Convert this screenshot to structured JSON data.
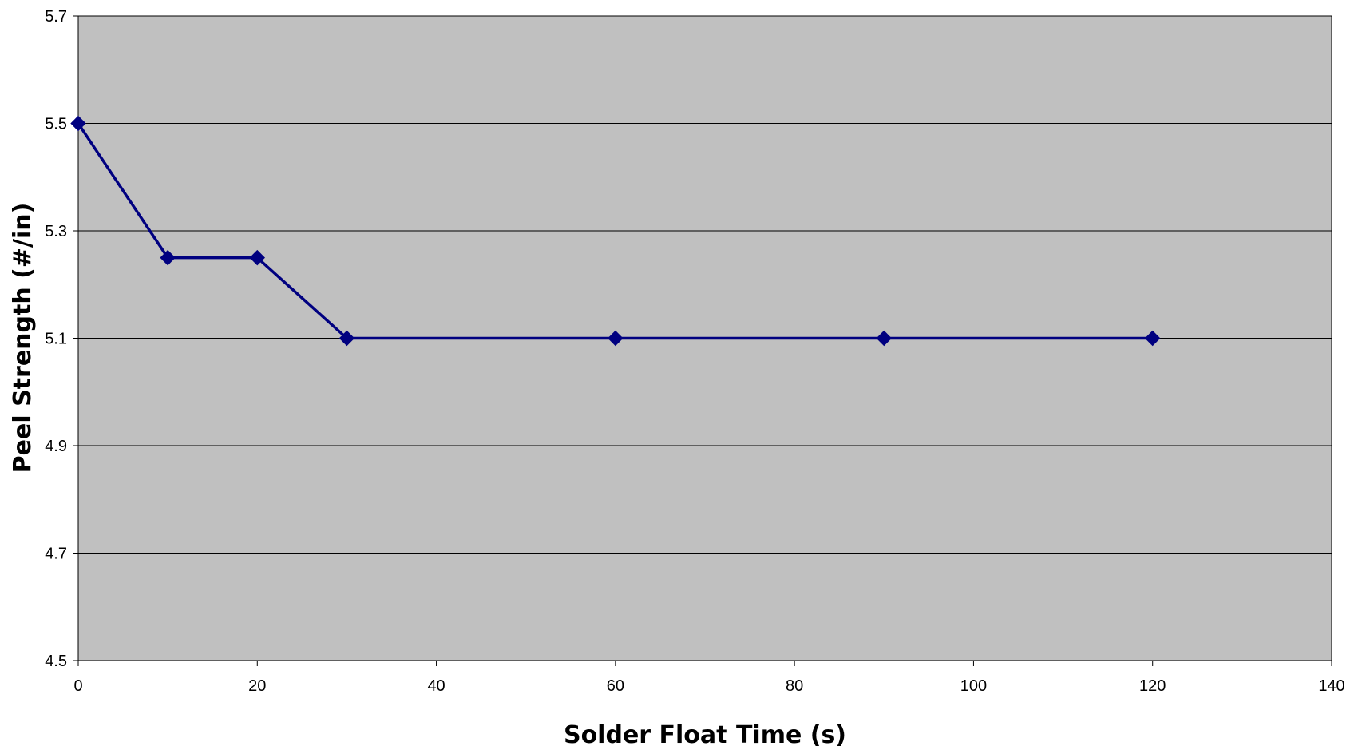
{
  "chart_data": {
    "type": "line",
    "title": "",
    "xlabel": "Solder Float Time (s)",
    "ylabel": "Peel Strength (#/in)",
    "xlim": [
      0,
      140
    ],
    "ylim": [
      4.5,
      5.7
    ],
    "x_ticks": [
      "0",
      "20",
      "40",
      "60",
      "80",
      "100",
      "120",
      "140"
    ],
    "y_ticks": [
      "4.5",
      "4.7",
      "4.9",
      "5.1",
      "5.3",
      "5.5",
      "5.7"
    ],
    "grid": true,
    "legend": "none",
    "plot_background": "#c0c0c0",
    "series": [
      {
        "color": "#000080",
        "marker": "diamond",
        "x": [
          0,
          10,
          20,
          30,
          60,
          90,
          120
        ],
        "y": [
          5.5,
          5.25,
          5.25,
          5.1,
          5.1,
          5.1,
          5.1
        ]
      }
    ]
  }
}
